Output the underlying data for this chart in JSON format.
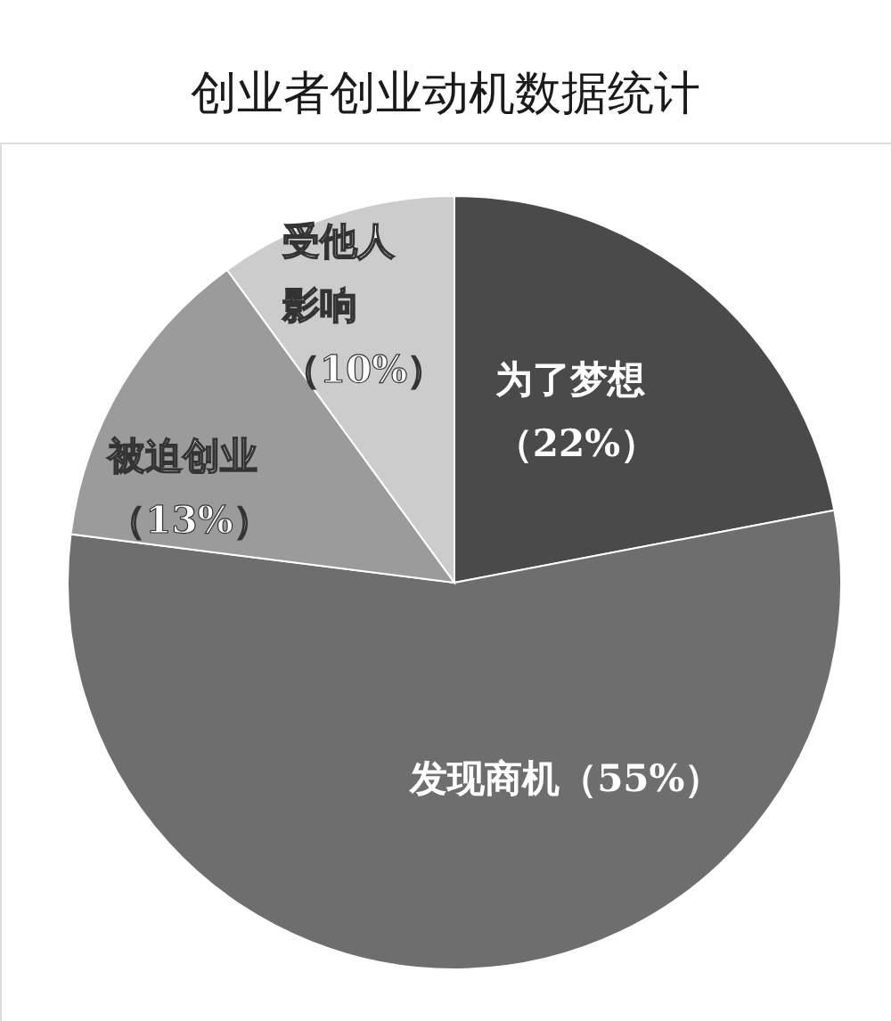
{
  "chart_data": {
    "type": "pie",
    "title": "创业者创业动机数据统计",
    "categories": [
      "为了梦想",
      "发现商机",
      "被迫创业",
      "受他人影响"
    ],
    "values": [
      22,
      55,
      13,
      10
    ],
    "value_labels": [
      "（22%）",
      "（55%）",
      "（13%）",
      "（10%）"
    ],
    "colors": [
      "#4a4a4a",
      "#6e6e6e",
      "#9b9b9b",
      "#cccccc"
    ]
  }
}
